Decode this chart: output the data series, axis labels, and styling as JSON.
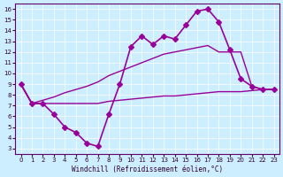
{
  "xlabel": "Windchill (Refroidissement éolien,°C)",
  "bg_color": "#cceeff",
  "line_color": "#990099",
  "x_ticks": [
    0,
    1,
    2,
    3,
    4,
    5,
    6,
    7,
    8,
    9,
    10,
    11,
    12,
    13,
    14,
    15,
    16,
    17,
    18,
    19,
    20,
    21,
    22,
    23
  ],
  "y_ticks": [
    3,
    4,
    5,
    6,
    7,
    8,
    9,
    10,
    11,
    12,
    13,
    14,
    15,
    16
  ],
  "xlim": [
    -0.5,
    23.5
  ],
  "ylim": [
    2.5,
    16.5
  ],
  "series": [
    {
      "x": [
        0,
        1,
        2,
        3,
        4,
        5,
        6,
        7,
        8,
        9,
        10,
        11,
        12,
        13,
        14,
        15,
        16,
        17,
        18,
        19,
        20,
        21,
        22,
        23
      ],
      "y": [
        9.0,
        7.2,
        7.2,
        6.2,
        5.0,
        4.5,
        3.5,
        3.2,
        6.2,
        9.0,
        12.5,
        13.5,
        12.7,
        13.5,
        13.2,
        14.5,
        15.8,
        16.0,
        14.8,
        12.2,
        9.5,
        8.8,
        8.5,
        8.5
      ],
      "marker": "D",
      "markersize": 3,
      "linewidth": 1.2
    },
    {
      "x": [
        0,
        1,
        2,
        3,
        4,
        5,
        6,
        7,
        8,
        9,
        10,
        11,
        12,
        13,
        14,
        15,
        16,
        17,
        18,
        19,
        20,
        21,
        22,
        23
      ],
      "y": [
        9.0,
        7.2,
        7.2,
        7.2,
        7.2,
        7.2,
        7.2,
        7.2,
        7.4,
        7.5,
        7.6,
        7.7,
        7.8,
        7.9,
        7.9,
        8.0,
        8.1,
        8.2,
        8.3,
        8.3,
        8.3,
        8.4,
        8.5,
        8.5
      ],
      "marker": null,
      "markersize": 0,
      "linewidth": 1.0
    },
    {
      "x": [
        0,
        1,
        2,
        3,
        4,
        5,
        6,
        7,
        8,
        9,
        10,
        11,
        12,
        13,
        14,
        15,
        16,
        17,
        18,
        19,
        20,
        21,
        22,
        23
      ],
      "y": [
        9.0,
        7.2,
        7.5,
        7.8,
        8.2,
        8.5,
        8.8,
        9.2,
        9.8,
        10.2,
        10.6,
        11.0,
        11.4,
        11.8,
        12.0,
        12.2,
        12.4,
        12.6,
        12.0,
        12.0,
        12.0,
        8.8,
        8.5,
        8.5
      ],
      "marker": null,
      "markersize": 0,
      "linewidth": 1.0
    }
  ]
}
